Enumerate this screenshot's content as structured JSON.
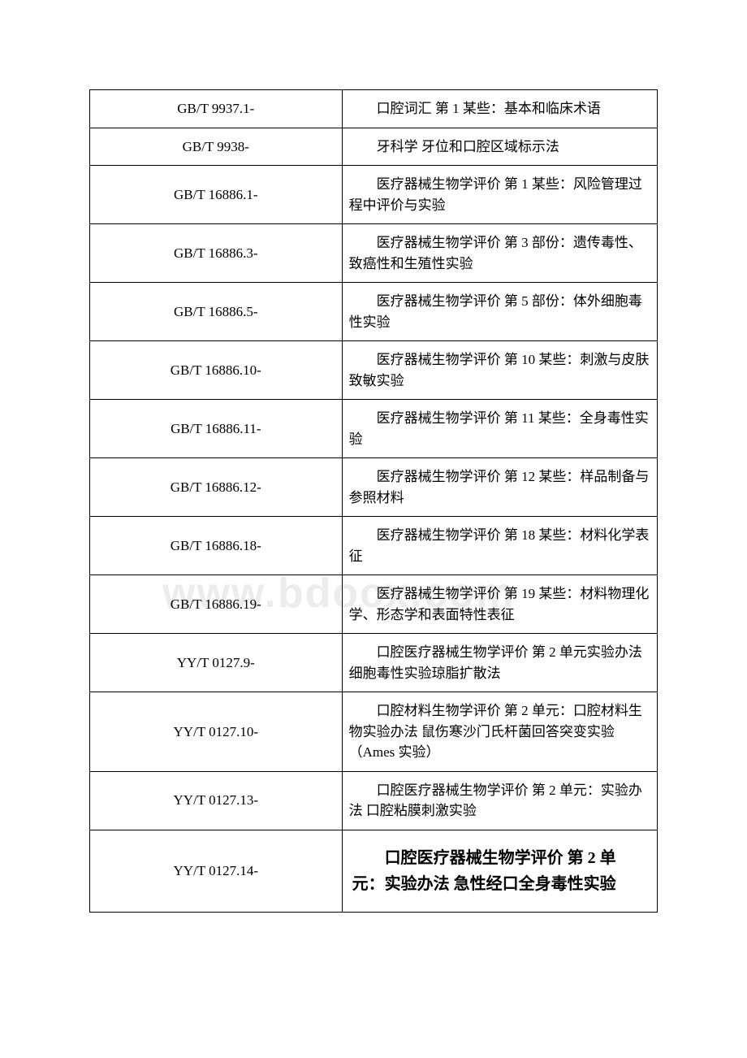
{
  "watermark": "www.bdocx.com",
  "table": {
    "columns_width": {
      "code": "42%",
      "desc": "58%"
    },
    "border_color": "#000000",
    "font_size": 17,
    "rows": [
      {
        "code": "GB/T 9937.1-",
        "desc": "口腔词汇 第 1 某些：基本和临床术语"
      },
      {
        "code": "GB/T 9938-",
        "desc": "牙科学 牙位和口腔区域标示法"
      },
      {
        "code": "GB/T 16886.1-",
        "desc": "医疗器械生物学评价 第 1 某些：风险管理过程中评价与实验"
      },
      {
        "code": "GB/T 16886.3-",
        "desc": "医疗器械生物学评价 第 3 部份：遗传毒性、致癌性和生殖性实验"
      },
      {
        "code": "GB/T 16886.5-",
        "desc": "医疗器械生物学评价 第 5 部份：体外细胞毒性实验"
      },
      {
        "code": "GB/T 16886.10-",
        "desc": "医疗器械生物学评价 第 10 某些：刺激与皮肤致敏实验"
      },
      {
        "code": "GB/T 16886.11-",
        "desc": "医疗器械生物学评价 第 11 某些：全身毒性实验"
      },
      {
        "code": "GB/T 16886.12-",
        "desc": "医疗器械生物学评价 第 12 某些：样品制备与参照材料"
      },
      {
        "code": "GB/T 16886.18-",
        "desc": "医疗器械生物学评价 第 18 某些：材料化学表征"
      },
      {
        "code": "GB/T 16886.19-",
        "desc": "医疗器械生物学评价 第 19 某些：材料物理化学、形态学和表面特性表征"
      },
      {
        "code": "YY/T 0127.9-",
        "desc": "口腔医疗器械生物学评价 第 2 单元实验办法 细胞毒性实验琼脂扩散法"
      },
      {
        "code": "YY/T 0127.10-",
        "desc": "口腔材料生物学评价 第 2 单元：口腔材料生物实验办法 鼠伤寒沙门氏杆菌回答突变实验（Ames 实验）"
      },
      {
        "code": "YY/T 0127.13-",
        "desc": "口腔医疗器械生物学评价 第 2 单元：实验办法 口腔粘膜刺激实验"
      },
      {
        "code": "YY/T 0127.14-",
        "desc": "口腔医疗器械生物学评价 第 2 单元：实验办法 急性经口全身毒性实验",
        "bold": true
      }
    ]
  }
}
